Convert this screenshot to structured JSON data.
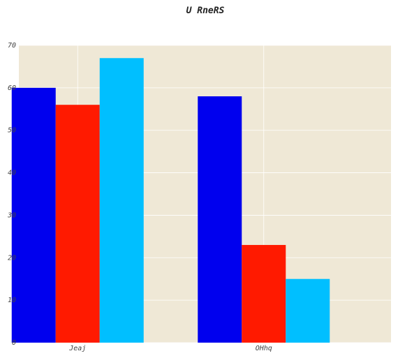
{
  "chart_data": {
    "type": "bar",
    "title": "U RneRS",
    "xlabel": "",
    "ylabel": "",
    "categories": [
      "Jeaj",
      "OHhq"
    ],
    "series": [
      {
        "values": [
          60,
          58
        ],
        "color": "#0000ee"
      },
      {
        "values": [
          56,
          23
        ],
        "color": "#ff1a00"
      },
      {
        "values": [
          67,
          15
        ],
        "color": "#00bfff"
      }
    ],
    "ylim": [
      0,
      70
    ],
    "yticks": [
      0,
      10,
      20,
      30,
      40,
      50,
      60,
      70
    ],
    "grid": true,
    "legend": "none",
    "colors": {
      "plot_background": "#efe8d6",
      "grid": "#ffffff"
    }
  }
}
